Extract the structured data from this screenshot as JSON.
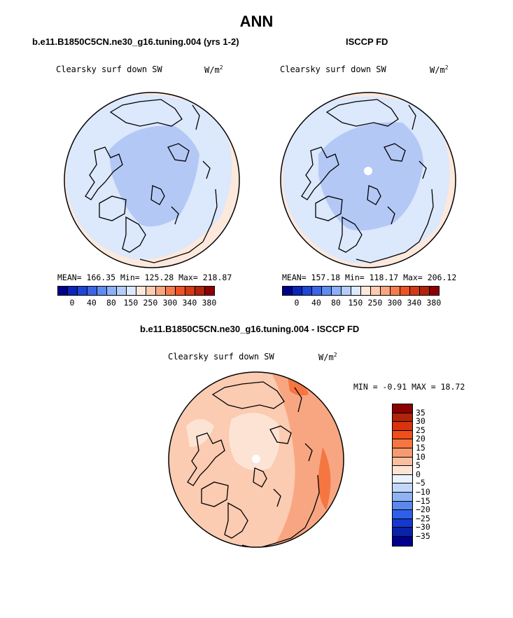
{
  "main_title": "ANN",
  "panels": [
    {
      "subtitle": "b.e11.B1850C5CN.ne30_g16.tuning.004 (yrs 1-2)",
      "var_label": "Clearsky surf down SW",
      "units": "W/m",
      "units_sup": "2",
      "stats": "MEAN= 166.35  Min= 125.28  Max= 218.87"
    },
    {
      "subtitle": "ISCCP FD",
      "var_label": "Clearsky surf down SW",
      "units": "W/m",
      "units_sup": "2",
      "stats": "MEAN= 157.18  Min= 118.17  Max= 206.12"
    },
    {
      "subtitle": "b.e11.B1850C5CN.ne30_g16.tuning.004 - ISCCP FD",
      "var_label": "Clearsky surf down SW",
      "units": "W/m",
      "units_sup": "2",
      "stats": "MIN =  -0.91 MAX =  18.72"
    }
  ],
  "colorbar_abs": {
    "ticks": [
      "0",
      "40",
      "80",
      "150",
      "250",
      "300",
      "340",
      "380"
    ],
    "colors": [
      "#00008b",
      "#0d24b8",
      "#1f45d6",
      "#3a66e6",
      "#5e8cf0",
      "#8bb0f5",
      "#b4cdf7",
      "#dce8fb",
      "#fde9dc",
      "#fbcbb2",
      "#f8a682",
      "#f57b4e",
      "#ee5224",
      "#d23a13",
      "#b0240a",
      "#8b0000"
    ]
  },
  "colorbar_diff": {
    "ticks": [
      "35",
      "30",
      "25",
      "20",
      "15",
      "10",
      "5",
      "0",
      "−5",
      "−10",
      "−15",
      "−20",
      "−25",
      "−30",
      "−35"
    ],
    "colors": [
      "#8b0000",
      "#b0240a",
      "#d8320f",
      "#f04e1c",
      "#f57641",
      "#f89a70",
      "#fbbfa0",
      "#fde3d3",
      "#eaf2fd",
      "#c3d8f9",
      "#8fb3f4",
      "#5a88ee",
      "#2e5fe6",
      "#1438d0",
      "#0a22a8",
      "#00008b"
    ]
  }
}
